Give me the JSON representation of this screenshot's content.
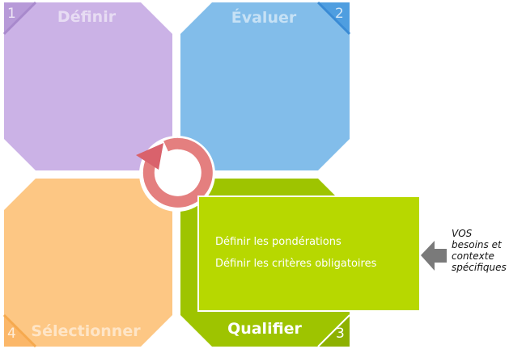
{
  "quadrants": [
    {
      "number": "1",
      "title": "Définir",
      "color": "#cbb2e6"
    },
    {
      "number": "2",
      "title": "Évaluer",
      "color": "#82bdea"
    },
    {
      "number": "3",
      "title": "Qualifier",
      "color": "#9ec400"
    },
    {
      "number": "4",
      "title": "Sélectionner",
      "color": "#fdc784"
    }
  ],
  "callout": {
    "lines": [
      "Définir les pondérations",
      "Définir les critères obligatoires"
    ],
    "color": "#b7d800"
  },
  "side_note": {
    "lines": [
      "VOS",
      "besoins et",
      "contexte",
      "spécifiques"
    ]
  },
  "cycle_color": "#e47f7f"
}
